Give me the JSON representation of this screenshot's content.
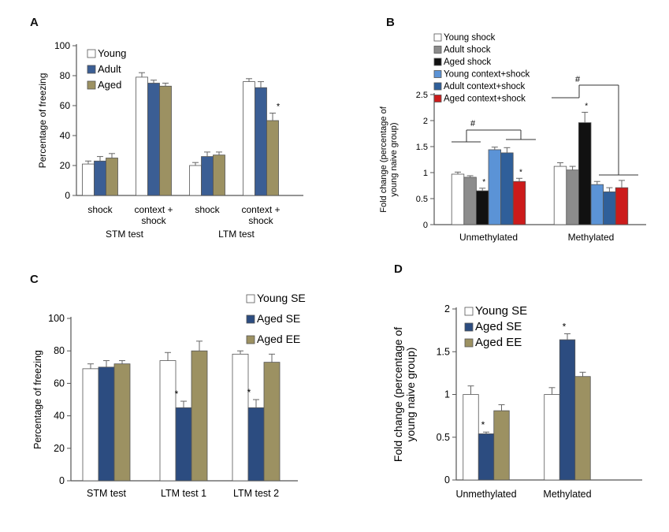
{
  "panels": [
    {
      "letter": "A"
    },
    {
      "letter": "B"
    },
    {
      "letter": "C"
    },
    {
      "letter": "D"
    }
  ],
  "chart_data": [
    {
      "type": "bar",
      "panel": "A",
      "title": "",
      "xlabel": "",
      "ylabel": "Percentage of freezing",
      "ylim": [
        0,
        100
      ],
      "yticks": [
        0,
        20,
        40,
        60,
        80,
        100
      ],
      "grid": false,
      "legend_position": "top-left",
      "categories": [
        [
          "shock"
        ],
        [
          "context +",
          "shock"
        ],
        [
          "shock"
        ],
        [
          "context +",
          "shock"
        ]
      ],
      "group_labels": [
        "STM test",
        "LTM test"
      ],
      "colors": [
        "#ffffff",
        "#3b5e94",
        "#9c9162"
      ],
      "series": [
        {
          "name": "Young",
          "values": [
            21,
            79,
            20,
            76
          ],
          "errors": [
            2,
            3,
            2,
            2
          ]
        },
        {
          "name": "Adult",
          "values": [
            23,
            75,
            26,
            72
          ],
          "errors": [
            3,
            2,
            3,
            4
          ]
        },
        {
          "name": "Aged",
          "values": [
            25,
            73,
            27,
            50
          ],
          "errors": [
            3,
            2,
            2,
            5
          ]
        }
      ],
      "annotations": [
        {
          "text": "*",
          "category": 3,
          "series": 2
        }
      ]
    },
    {
      "type": "bar",
      "panel": "B",
      "title": "",
      "xlabel": "",
      "ylabel": "Fold change (percentage of young naive group)",
      "ylim": [
        0,
        2.5
      ],
      "yticks": [
        0,
        0.5,
        1,
        1.5,
        2,
        2.5
      ],
      "grid": false,
      "legend_position": "top-left",
      "categories": [
        "Unmethylated",
        "Methylated"
      ],
      "colors": [
        "#ffffff",
        "#8c8c8c",
        "#111111",
        "#5b93d6",
        "#2f5f9a",
        "#cc1b1b"
      ],
      "series": [
        {
          "name": "Young shock",
          "values": [
            0.97,
            1.12
          ],
          "errors": [
            0.04,
            0.07
          ]
        },
        {
          "name": "Adult shock",
          "values": [
            0.91,
            1.05
          ],
          "errors": [
            0.03,
            0.07
          ]
        },
        {
          "name": "Aged shock",
          "values": [
            0.65,
            1.96
          ],
          "errors": [
            0.05,
            0.2
          ]
        },
        {
          "name": "Young context+shock",
          "values": [
            1.44,
            0.77
          ],
          "errors": [
            0.05,
            0.06
          ]
        },
        {
          "name": "Adult context+shock",
          "values": [
            1.38,
            0.63
          ],
          "errors": [
            0.1,
            0.08
          ]
        },
        {
          "name": "Aged context+shock",
          "values": [
            0.83,
            0.71
          ],
          "errors": [
            0.06,
            0.14
          ]
        }
      ],
      "annotations": [
        {
          "text": "*",
          "category": 0,
          "series": 2
        },
        {
          "text": "*",
          "category": 0,
          "series": 5
        },
        {
          "text": "*",
          "category": 1,
          "series": 2
        },
        {
          "text": "#",
          "note": "bracket"
        },
        {
          "text": "#",
          "note": "bracket"
        }
      ]
    },
    {
      "type": "bar",
      "panel": "C",
      "title": "",
      "xlabel": "",
      "ylabel": "Percentage of freezing",
      "ylim": [
        0,
        100
      ],
      "yticks": [
        0,
        20,
        40,
        60,
        80,
        100
      ],
      "grid": false,
      "legend_position": "top-right",
      "categories": [
        [
          "STM test"
        ],
        [
          "LTM test 1"
        ],
        [
          "LTM test 2"
        ]
      ],
      "colors": [
        "#ffffff",
        "#2c4c80",
        "#9c9162"
      ],
      "series": [
        {
          "name": "Young SE",
          "values": [
            69,
            74,
            78
          ],
          "errors": [
            3,
            5,
            2
          ]
        },
        {
          "name": "Aged SE",
          "values": [
            70,
            45,
            45
          ],
          "errors": [
            4,
            4,
            5
          ]
        },
        {
          "name": "Aged EE",
          "values": [
            72,
            80,
            73
          ],
          "errors": [
            2,
            6,
            5
          ]
        }
      ],
      "annotations": [
        {
          "text": "*",
          "category": 1,
          "series": 1
        },
        {
          "text": "*",
          "category": 2,
          "series": 1
        }
      ]
    },
    {
      "type": "bar",
      "panel": "D",
      "title": "",
      "xlabel": "",
      "ylabel": "Fold change (percentage of young naive group)",
      "ylim": [
        0,
        2
      ],
      "yticks": [
        0,
        0.5,
        1,
        1.5,
        2
      ],
      "grid": false,
      "legend_position": "top-left",
      "categories": [
        [
          "Unmethylated"
        ],
        [
          "Methylated"
        ]
      ],
      "colors": [
        "#ffffff",
        "#2c4c80",
        "#9c9162"
      ],
      "series": [
        {
          "name": "Young SE",
          "values": [
            1.0,
            1.0
          ],
          "errors": [
            0.1,
            0.08
          ]
        },
        {
          "name": "Aged SE",
          "values": [
            0.54,
            1.64
          ],
          "errors": [
            0.02,
            0.07
          ]
        },
        {
          "name": "Aged EE",
          "values": [
            0.81,
            1.21
          ],
          "errors": [
            0.07,
            0.05
          ]
        }
      ],
      "annotations": [
        {
          "text": "*",
          "category": 0,
          "series": 1
        },
        {
          "text": "*",
          "category": 1,
          "series": 1
        }
      ]
    }
  ]
}
